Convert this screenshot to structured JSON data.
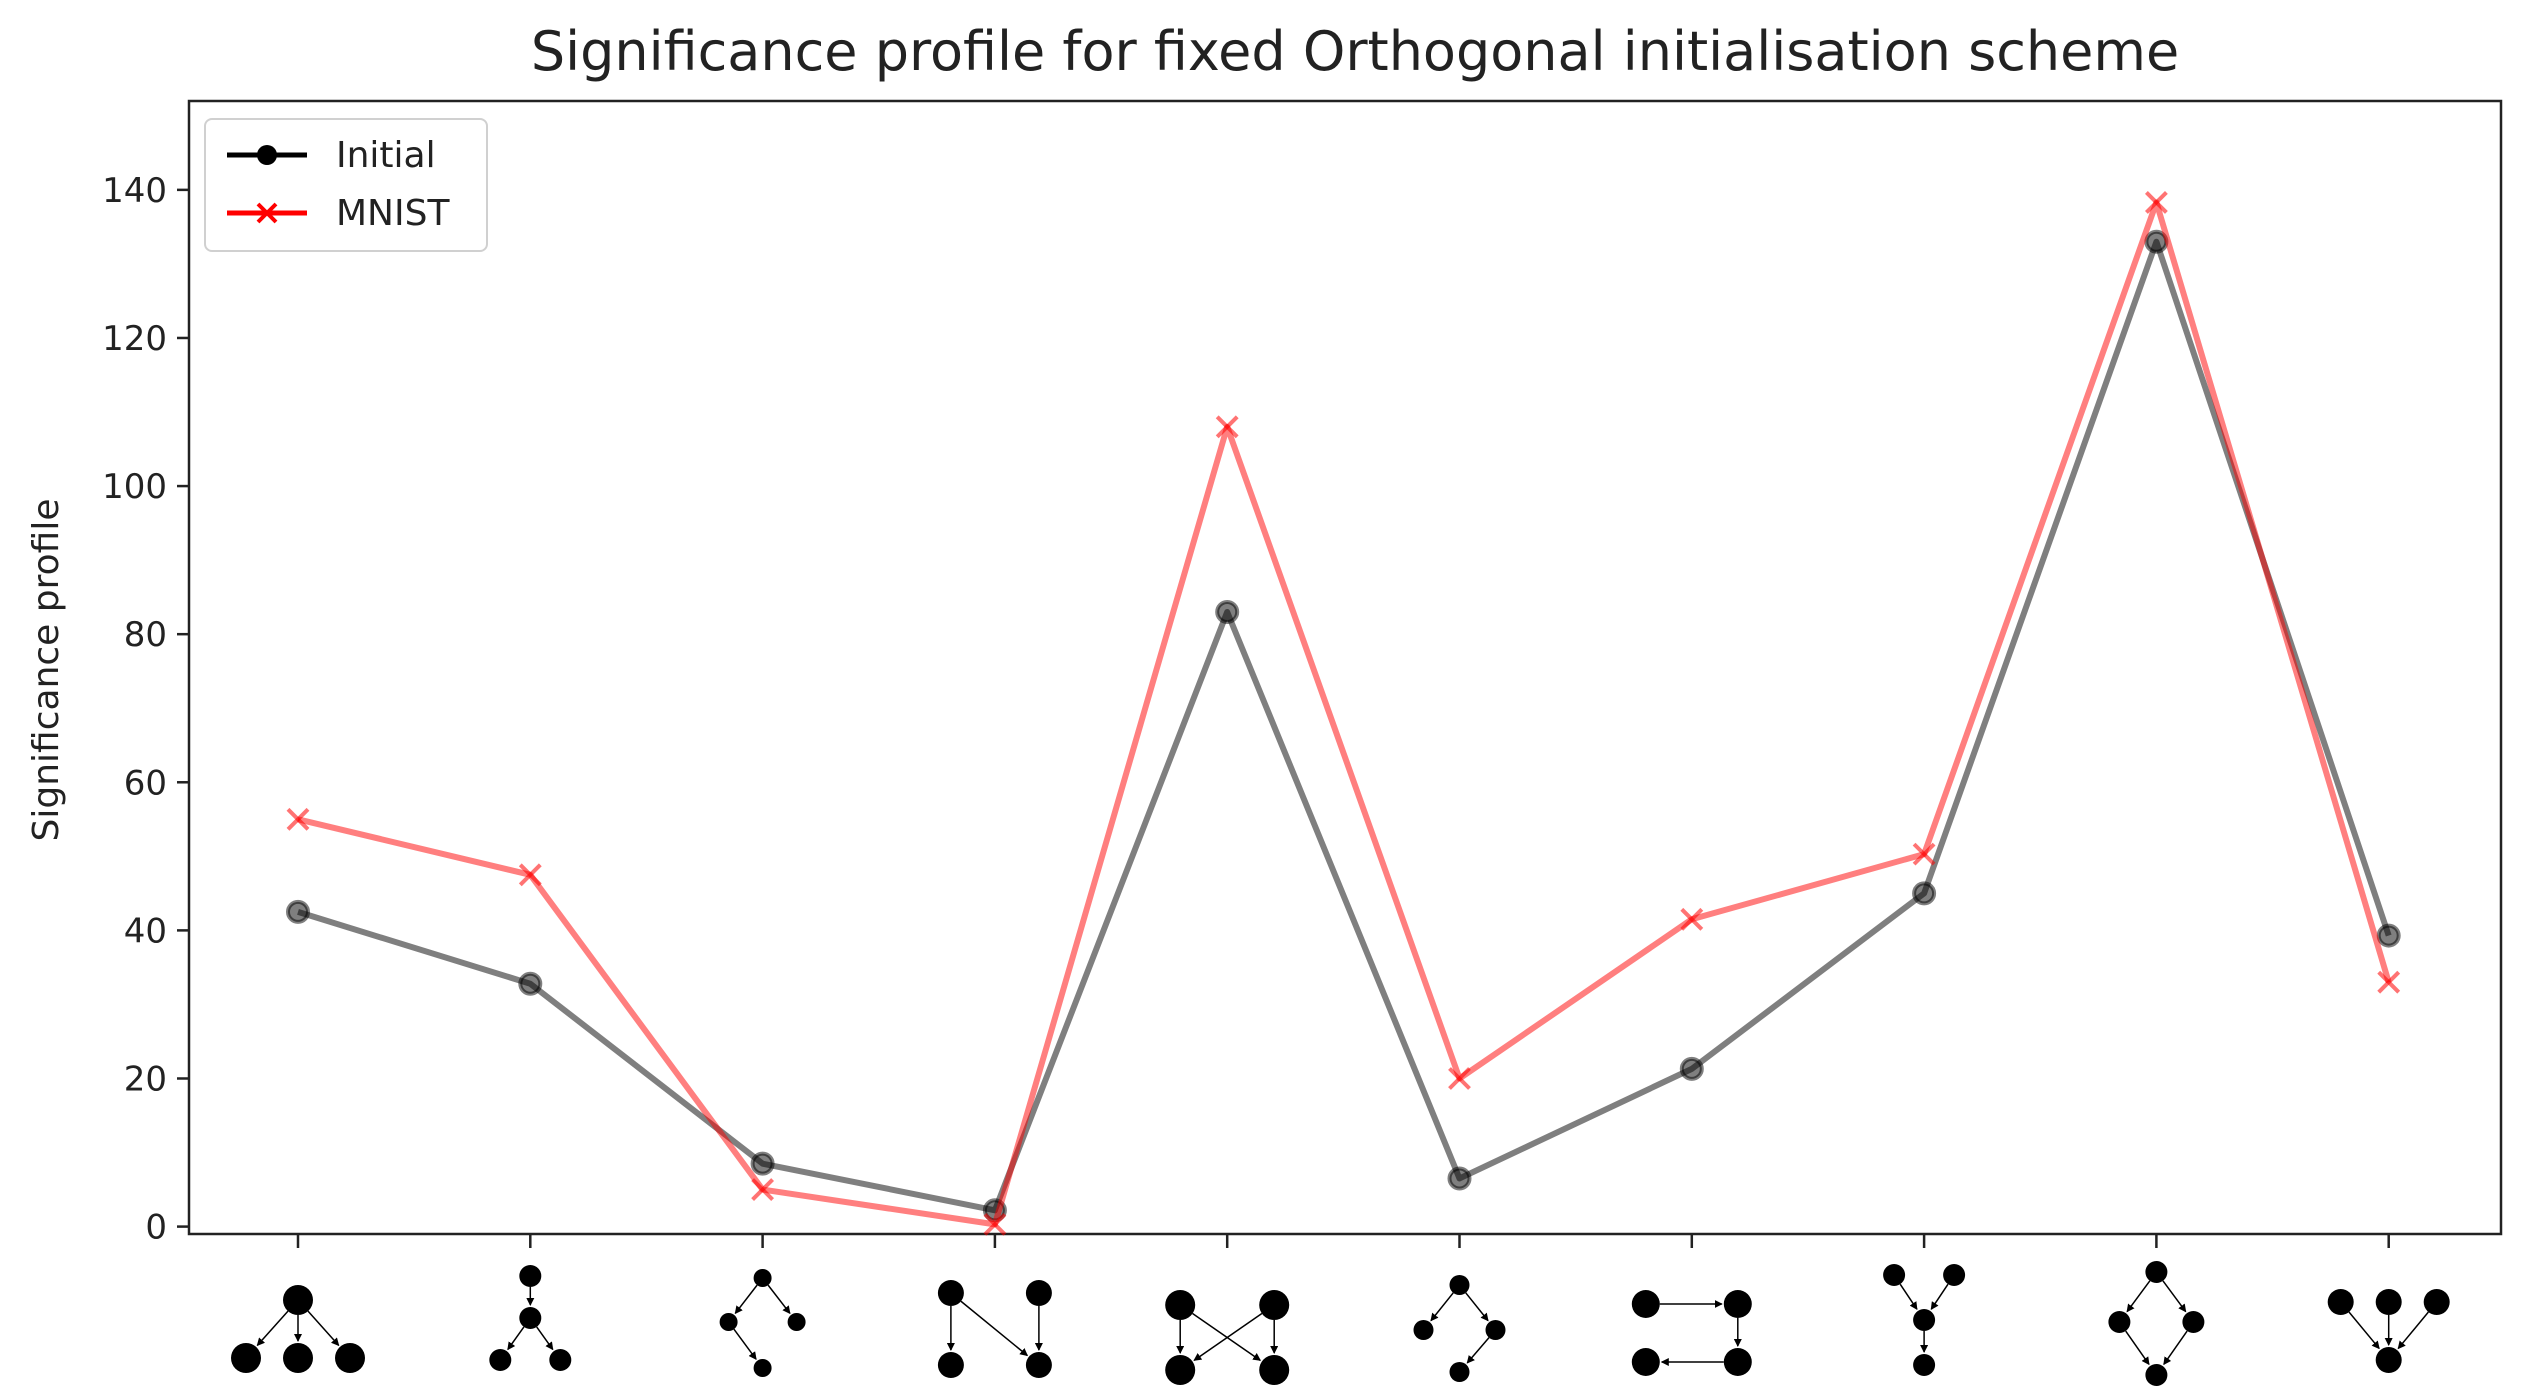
{
  "chart_data": {
    "type": "line",
    "title": "Significance profile for fixed Orthogonal initialisation scheme",
    "xlabel": "",
    "ylabel": "Significance profile",
    "ylim": [
      -1,
      152
    ],
    "yticks": [
      0,
      20,
      40,
      60,
      80,
      100,
      120,
      140
    ],
    "x": [
      0,
      1,
      2,
      3,
      4,
      5,
      6,
      7,
      8,
      9
    ],
    "x_tick_labels": "network motif diagrams (10 three/four-node subgraphs)",
    "series": [
      {
        "name": "Initial",
        "color": "#000000",
        "marker": "circle",
        "values": [
          42.5,
          32.8,
          8.5,
          2.2,
          83.0,
          6.5,
          21.3,
          45.0,
          133.0,
          39.3
        ]
      },
      {
        "name": "MNIST",
        "color": "#ff0000",
        "marker": "x",
        "values": [
          55.0,
          47.5,
          5.0,
          0.3,
          108.0,
          20.0,
          41.5,
          50.3,
          138.3,
          33.0
        ]
      }
    ],
    "legend_position": "top-left",
    "grid": false
  }
}
